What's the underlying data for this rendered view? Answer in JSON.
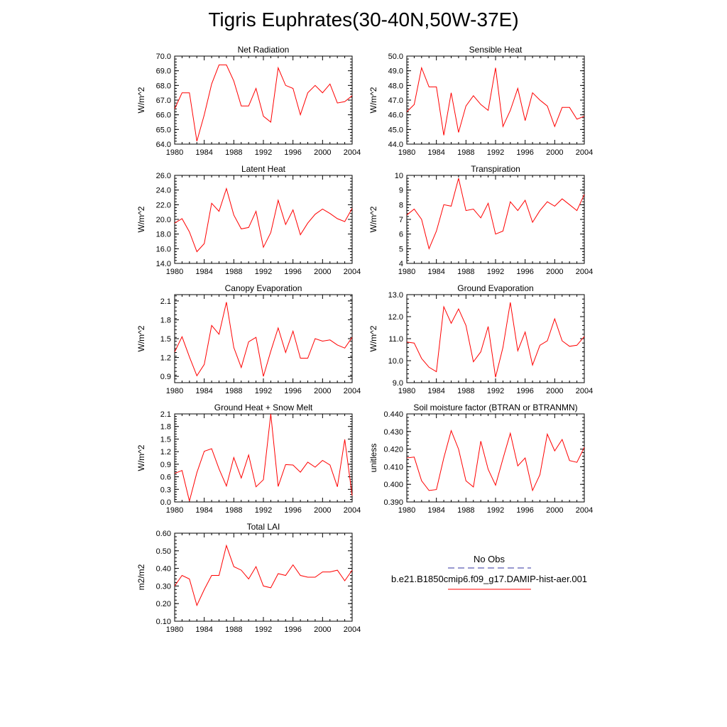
{
  "title": "Tigris Euphrates(30-40N,50W-37E)",
  "colors": {
    "series": "#ff0000",
    "obs": "#3030a0",
    "axis": "#000000"
  },
  "legend": {
    "obs_label": "No Obs",
    "model_label": "b.e21.B1850cmip6.f09_g17.DAMIP-hist-aer.001"
  },
  "chart_data": [
    {
      "type": "line",
      "title": "Net Radiation",
      "ylabel": "W/m^2",
      "xlim": [
        1980,
        2004
      ],
      "ylim": [
        64.0,
        70.0
      ],
      "xticks": [
        "1980",
        "1984",
        "1988",
        "1992",
        "1996",
        "2000",
        "2004"
      ],
      "yticks": [
        "64.0",
        "65.0",
        "66.0",
        "67.0",
        "68.0",
        "69.0",
        "70.0"
      ],
      "x": [
        1980,
        1981,
        1982,
        1983,
        1984,
        1985,
        1986,
        1987,
        1988,
        1989,
        1990,
        1991,
        1992,
        1993,
        1994,
        1995,
        1996,
        1997,
        1998,
        1999,
        2000,
        2001,
        2002,
        2003,
        2004
      ],
      "series": [
        {
          "values": [
            66.4,
            67.5,
            67.5,
            64.2,
            66.0,
            68.1,
            69.4,
            69.4,
            68.3,
            66.6,
            66.6,
            67.8,
            65.9,
            65.5,
            69.2,
            68.0,
            67.8,
            66.0,
            67.5,
            68.0,
            67.5,
            68.1,
            66.8,
            66.9,
            67.3
          ]
        }
      ]
    },
    {
      "type": "line",
      "title": "Sensible Heat",
      "ylabel": "W/m^2",
      "xlim": [
        1980,
        2004
      ],
      "ylim": [
        44.0,
        50.0
      ],
      "xticks": [
        "1980",
        "1984",
        "1988",
        "1992",
        "1996",
        "2000",
        "2004"
      ],
      "yticks": [
        "44.0",
        "45.0",
        "46.0",
        "47.0",
        "48.0",
        "49.0",
        "50.0"
      ],
      "x": [
        1980,
        1981,
        1982,
        1983,
        1984,
        1985,
        1986,
        1987,
        1988,
        1989,
        1990,
        1991,
        1992,
        1993,
        1994,
        1995,
        1996,
        1997,
        1998,
        1999,
        2000,
        2001,
        2002,
        2003,
        2004
      ],
      "series": [
        {
          "values": [
            46.2,
            46.7,
            49.2,
            47.9,
            47.9,
            44.6,
            47.5,
            44.8,
            46.6,
            47.3,
            46.7,
            46.3,
            49.2,
            45.2,
            46.3,
            47.8,
            45.6,
            47.5,
            47.0,
            46.6,
            45.2,
            46.5,
            46.5,
            45.7,
            45.9
          ]
        }
      ]
    },
    {
      "type": "line",
      "title": "Latent Heat",
      "ylabel": "W/m^2",
      "xlim": [
        1980,
        2004
      ],
      "ylim": [
        14.0,
        26.0
      ],
      "xticks": [
        "1980",
        "1984",
        "1988",
        "1992",
        "1996",
        "2000",
        "2004"
      ],
      "yticks": [
        "14.0",
        "16.0",
        "18.0",
        "20.0",
        "22.0",
        "24.0",
        "26.0"
      ],
      "x": [
        1980,
        1981,
        1982,
        1983,
        1984,
        1985,
        1986,
        1987,
        1988,
        1989,
        1990,
        1991,
        1992,
        1993,
        1994,
        1995,
        1996,
        1997,
        1998,
        1999,
        2000,
        2001,
        2002,
        2003,
        2004
      ],
      "series": [
        {
          "values": [
            19.5,
            20.1,
            18.3,
            15.6,
            16.7,
            22.2,
            21.1,
            24.2,
            20.6,
            18.7,
            18.9,
            21.1,
            16.2,
            18.2,
            22.6,
            19.3,
            21.3,
            17.9,
            19.5,
            20.7,
            21.4,
            20.8,
            20.1,
            19.7,
            21.5
          ]
        }
      ]
    },
    {
      "type": "line",
      "title": "Transpiration",
      "ylabel": "W/m^2",
      "xlim": [
        1980,
        2004
      ],
      "ylim": [
        4,
        10
      ],
      "xticks": [
        "1980",
        "1984",
        "1988",
        "1992",
        "1996",
        "2000",
        "2004"
      ],
      "yticks": [
        "4",
        "5",
        "6",
        "7",
        "8",
        "9",
        "10"
      ],
      "x": [
        1980,
        1981,
        1982,
        1983,
        1984,
        1985,
        1986,
        1987,
        1988,
        1989,
        1990,
        1991,
        1992,
        1993,
        1994,
        1995,
        1996,
        1997,
        1998,
        1999,
        2000,
        2001,
        2002,
        2003,
        2004
      ],
      "series": [
        {
          "values": [
            7.3,
            7.7,
            7.0,
            5.0,
            6.2,
            8.0,
            7.9,
            9.8,
            7.6,
            7.7,
            7.1,
            8.1,
            6.0,
            6.2,
            8.2,
            7.6,
            8.3,
            6.8,
            7.6,
            8.2,
            7.9,
            8.4,
            8.0,
            7.6,
            8.7
          ]
        }
      ]
    },
    {
      "type": "line",
      "title": "Canopy Evaporation",
      "ylabel": "W/m^2",
      "xlim": [
        1980,
        2004
      ],
      "ylim": [
        0.8,
        2.2
      ],
      "xticks": [
        "1980",
        "1984",
        "1988",
        "1992",
        "1996",
        "2000",
        "2004"
      ],
      "yticks": [
        "0.9",
        "1.2",
        "1.5",
        "1.8",
        "2.1"
      ],
      "ytick_values": [
        0.9,
        1.2,
        1.5,
        1.8,
        2.1
      ],
      "x": [
        1980,
        1981,
        1982,
        1983,
        1984,
        1985,
        1986,
        1987,
        1988,
        1989,
        1990,
        1991,
        1992,
        1993,
        1994,
        1995,
        1996,
        1997,
        1998,
        1999,
        2000,
        2001,
        2002,
        2003,
        2004
      ],
      "series": [
        {
          "values": [
            1.29,
            1.53,
            1.21,
            0.91,
            1.09,
            1.71,
            1.57,
            2.08,
            1.36,
            1.04,
            1.45,
            1.52,
            0.9,
            1.3,
            1.67,
            1.28,
            1.62,
            1.19,
            1.19,
            1.5,
            1.46,
            1.48,
            1.4,
            1.35,
            1.52
          ]
        }
      ]
    },
    {
      "type": "line",
      "title": "Ground Evaporation",
      "ylabel": "W/m^2",
      "xlim": [
        1980,
        2004
      ],
      "ylim": [
        9.0,
        13.0
      ],
      "xticks": [
        "1980",
        "1984",
        "1988",
        "1992",
        "1996",
        "2000",
        "2004"
      ],
      "yticks": [
        "9.0",
        "10.0",
        "11.0",
        "12.0",
        "13.0"
      ],
      "x": [
        1980,
        1981,
        1982,
        1983,
        1984,
        1985,
        1986,
        1987,
        1988,
        1989,
        1990,
        1991,
        1992,
        1993,
        1994,
        1995,
        1996,
        1997,
        1998,
        1999,
        2000,
        2001,
        2002,
        2003,
        2004
      ],
      "series": [
        {
          "values": [
            10.85,
            10.8,
            10.1,
            9.7,
            9.5,
            12.45,
            11.7,
            12.35,
            11.6,
            9.95,
            10.4,
            11.55,
            9.25,
            10.6,
            12.65,
            10.45,
            11.3,
            9.8,
            10.7,
            10.9,
            11.9,
            10.9,
            10.65,
            10.7,
            11.1
          ]
        }
      ]
    },
    {
      "type": "line",
      "title": "Ground Heat + Snow Melt",
      "ylabel": "W/m^2",
      "xlim": [
        1980,
        2004
      ],
      "ylim": [
        0.0,
        2.1
      ],
      "xticks": [
        "1980",
        "1984",
        "1988",
        "1992",
        "1996",
        "2000",
        "2004"
      ],
      "yticks": [
        "0.0",
        "0.3",
        "0.6",
        "0.9",
        "1.2",
        "1.5",
        "1.8",
        "2.1"
      ],
      "x": [
        1980,
        1981,
        1982,
        1983,
        1984,
        1985,
        1986,
        1987,
        1988,
        1989,
        1990,
        1991,
        1992,
        1993,
        1994,
        1995,
        1996,
        1997,
        1998,
        1999,
        2000,
        2001,
        2002,
        2003,
        2004
      ],
      "series": [
        {
          "values": [
            0.68,
            0.75,
            0.02,
            0.7,
            1.21,
            1.27,
            0.79,
            0.38,
            1.06,
            0.57,
            1.12,
            0.36,
            0.53,
            2.1,
            0.37,
            0.89,
            0.88,
            0.71,
            0.95,
            0.83,
            0.99,
            0.88,
            0.36,
            1.49,
            0.15
          ]
        }
      ]
    },
    {
      "type": "line",
      "title": "Soil moisture factor (BTRAN or BTRANMN)",
      "ylabel": "unitless",
      "xlim": [
        1980,
        2004
      ],
      "ylim": [
        0.39,
        0.44
      ],
      "xticks": [
        "1980",
        "1984",
        "1988",
        "1992",
        "1996",
        "2000",
        "2004"
      ],
      "yticks": [
        "0.390",
        "0.400",
        "0.410",
        "0.420",
        "0.430",
        "0.440"
      ],
      "x": [
        1980,
        1981,
        1982,
        1983,
        1984,
        1985,
        1986,
        1987,
        1988,
        1989,
        1990,
        1991,
        1992,
        1993,
        1994,
        1995,
        1996,
        1997,
        1998,
        1999,
        2000,
        2001,
        2002,
        2003,
        2004
      ],
      "series": [
        {
          "values": [
            0.415,
            0.4155,
            0.402,
            0.3965,
            0.397,
            0.415,
            0.4305,
            0.42,
            0.402,
            0.3985,
            0.4245,
            0.4085,
            0.3995,
            0.4145,
            0.429,
            0.4105,
            0.415,
            0.3965,
            0.4055,
            0.4285,
            0.419,
            0.4255,
            0.4135,
            0.4125,
            0.421
          ]
        }
      ]
    },
    {
      "type": "line",
      "title": "Total LAI",
      "ylabel": "m2/m2",
      "xlim": [
        1980,
        2004
      ],
      "ylim": [
        0.1,
        0.6
      ],
      "xticks": [
        "1980",
        "1984",
        "1988",
        "1992",
        "1996",
        "2000",
        "2004"
      ],
      "yticks": [
        "0.10",
        "0.20",
        "0.30",
        "0.40",
        "0.50",
        "0.60"
      ],
      "x": [
        1980,
        1981,
        1982,
        1983,
        1984,
        1985,
        1986,
        1987,
        1988,
        1989,
        1990,
        1991,
        1992,
        1993,
        1994,
        1995,
        1996,
        1997,
        1998,
        1999,
        2000,
        2001,
        2002,
        2003,
        2004
      ],
      "series": [
        {
          "values": [
            0.3,
            0.36,
            0.34,
            0.19,
            0.28,
            0.36,
            0.36,
            0.53,
            0.41,
            0.39,
            0.34,
            0.41,
            0.3,
            0.29,
            0.37,
            0.36,
            0.42,
            0.36,
            0.35,
            0.35,
            0.38,
            0.38,
            0.39,
            0.33,
            0.39
          ]
        }
      ]
    }
  ]
}
